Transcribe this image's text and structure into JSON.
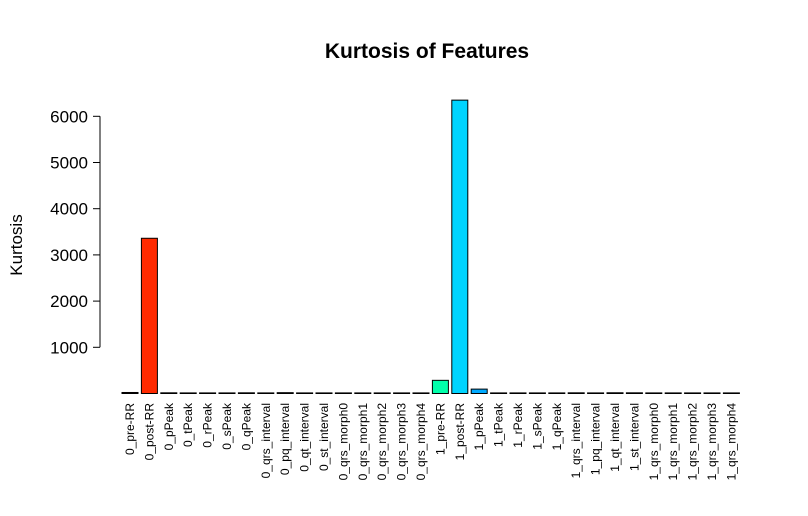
{
  "chart_data": {
    "type": "bar",
    "title": "Kurtosis of Features",
    "xlabel": "",
    "ylabel": "Kurtosis",
    "ylim": [
      -110,
      6600
    ],
    "yticks": [
      1000,
      2000,
      3000,
      4000,
      5000,
      6000
    ],
    "ytick_labels": [
      "1000",
      "2000",
      "3000",
      "4000",
      "5000",
      "6000"
    ],
    "grid": false,
    "categories": [
      "0_pre-RR",
      "0_post-RR",
      "0_pPeak",
      "0_tPeak",
      "0_rPeak",
      "0_sPeak",
      "0_qPeak",
      "0_qrs_interval",
      "0_pq_interval",
      "0_qt_interval",
      "0_st_interval",
      "0_qrs_morph0",
      "0_qrs_morph1",
      "0_qrs_morph2",
      "0_qrs_morph3",
      "0_qrs_morph4",
      "1_pre-RR",
      "1_post-RR",
      "1_pPeak",
      "1_tPeak",
      "1_rPeak",
      "1_sPeak",
      "1_qPeak",
      "1_qrs_interval",
      "1_pq_interval",
      "1_qt_interval",
      "1_st_interval",
      "1_qrs_morph0",
      "1_qrs_morph1",
      "1_qrs_morph2",
      "1_qrs_morph3",
      "1_qrs_morph4"
    ],
    "values": [
      22,
      3360,
      15,
      5,
      4,
      6,
      15,
      4,
      18,
      6,
      5,
      10,
      12,
      10,
      5,
      6,
      285,
      6350,
      95,
      5,
      4,
      5,
      9,
      15,
      5,
      16,
      15,
      5,
      5,
      4,
      5,
      5
    ],
    "colors": [
      "#FF0000",
      "#FF2A00",
      "#FF5500",
      "#FF8000",
      "#FFAA00",
      "#FFD500",
      "#FFFF00",
      "#D4FF00",
      "#AAFF00",
      "#80FF00",
      "#55FF00",
      "#2BFF00",
      "#00FF00",
      "#00FF2A",
      "#00FF55",
      "#00FF80",
      "#00FFAA",
      "#00D4FF",
      "#00AAFF",
      "#0080FF",
      "#0055FF",
      "#002BFF",
      "#0000FF",
      "#2A00FF",
      "#5500FF",
      "#8000FF",
      "#AA00FF",
      "#D400FF",
      "#FF00FF",
      "#FF00D4",
      "#FF00AA",
      "#FF0080"
    ]
  }
}
